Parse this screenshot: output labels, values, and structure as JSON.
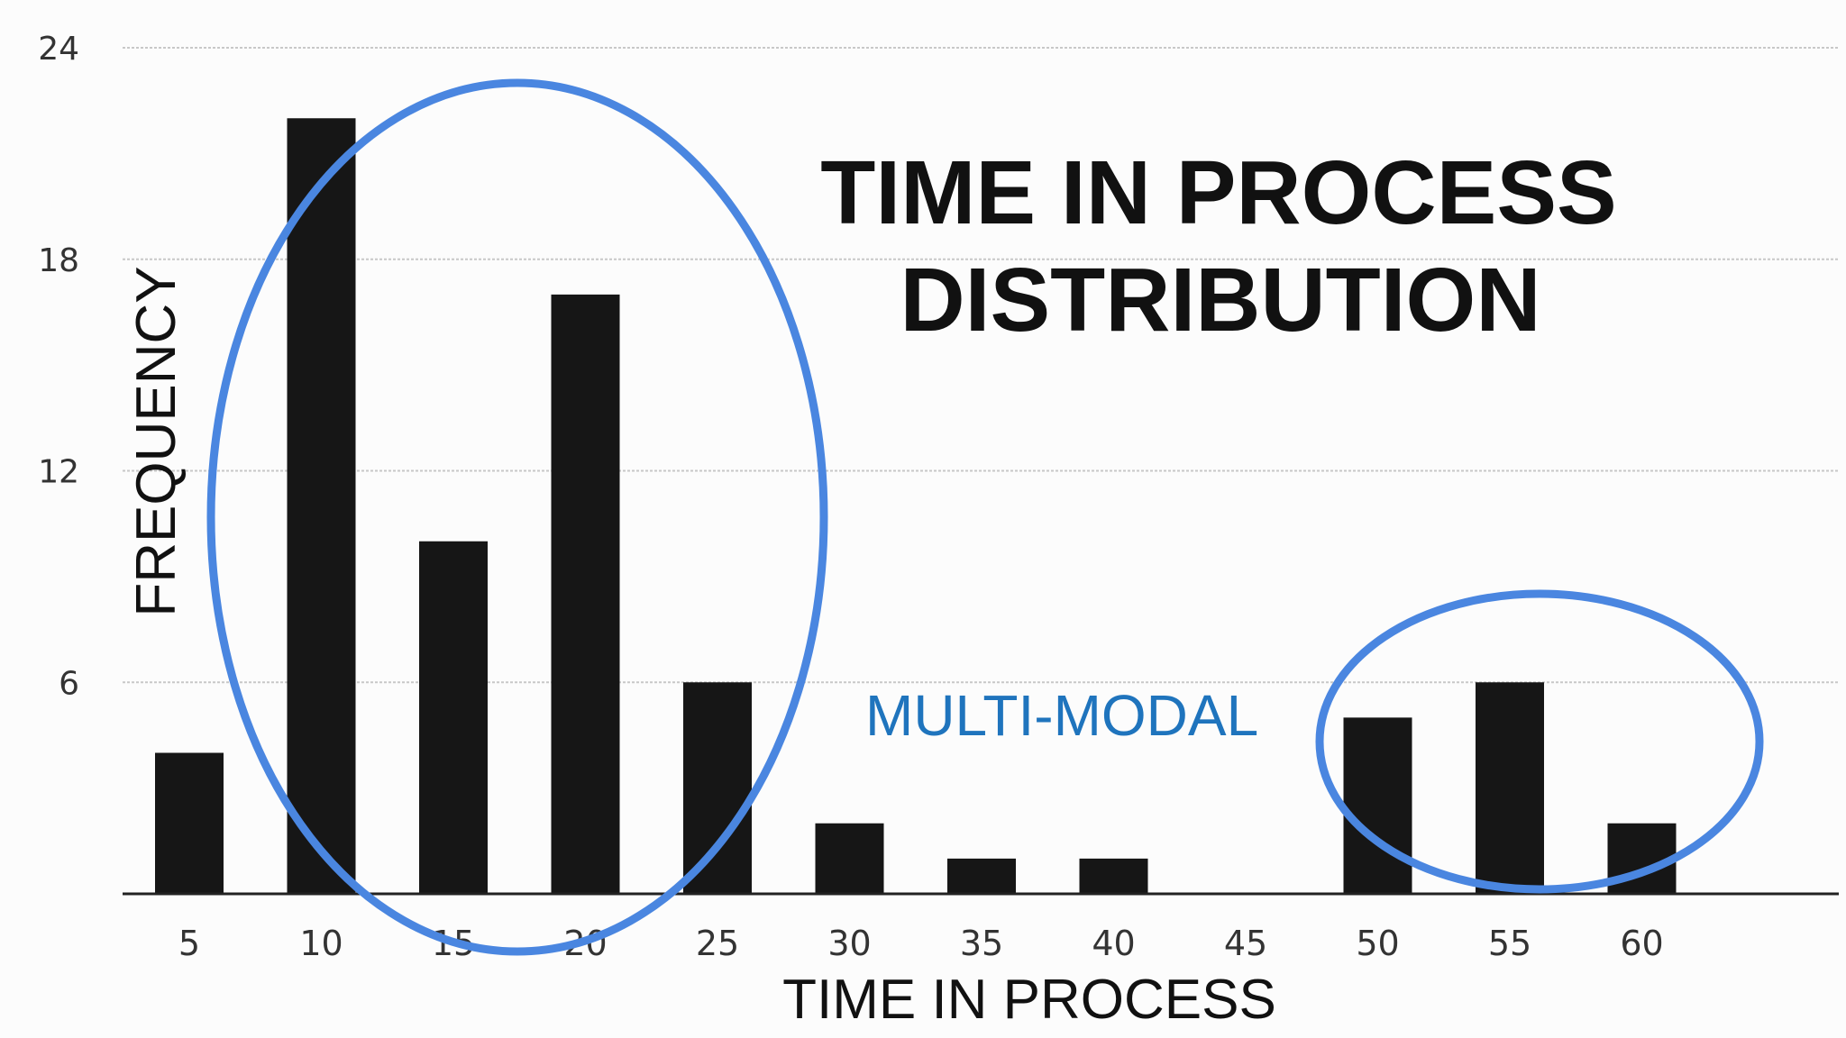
{
  "chart_data": {
    "type": "bar",
    "title_lines": [
      "TIME IN PROCESS",
      "DISTRIBUTION"
    ],
    "xlabel": "TIME IN PROCESS",
    "ylabel": "FREQUENCY",
    "categories": [
      "5",
      "10",
      "15",
      "20",
      "25",
      "30",
      "35",
      "40",
      "45",
      "50",
      "55",
      "60"
    ],
    "values": [
      4,
      22,
      10,
      17,
      6,
      2,
      1,
      1,
      0,
      5,
      6,
      2
    ],
    "ylim": [
      0,
      24
    ],
    "yticks": [
      "6",
      "12",
      "18",
      "24"
    ],
    "grid": true,
    "bar_color": "#161616",
    "annotation": {
      "text": "MULTI-MODAL",
      "color": "#1f74bd",
      "highlight_color": "#4a86e0",
      "highlight_groups": [
        [
          "10",
          "15",
          "20",
          "25"
        ],
        [
          "50",
          "55",
          "60"
        ]
      ]
    }
  }
}
